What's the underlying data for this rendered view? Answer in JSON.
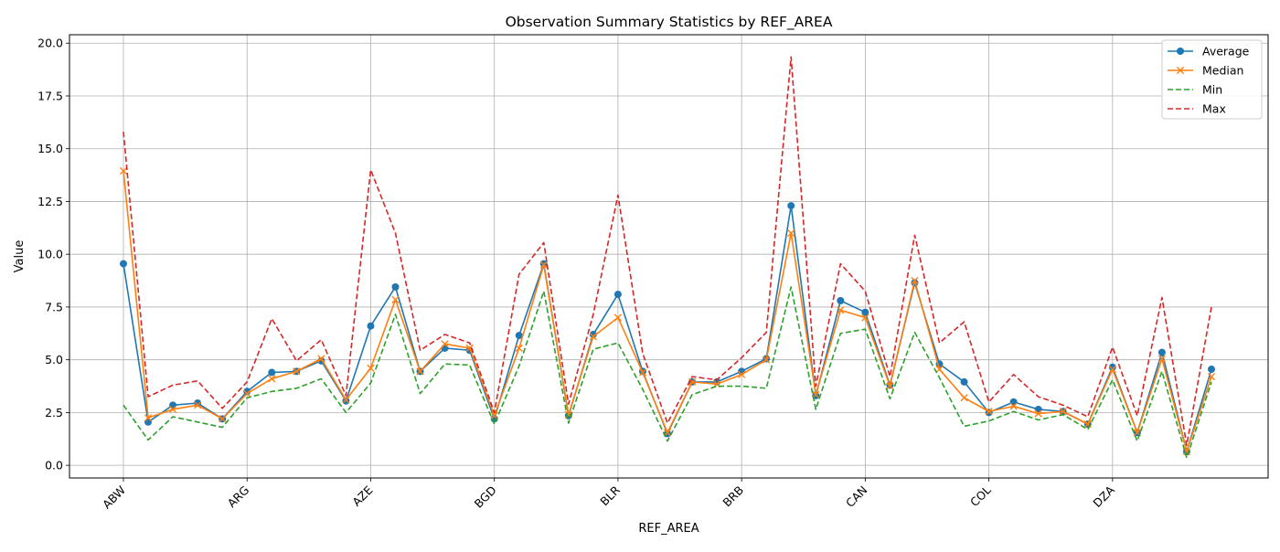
{
  "chart_data": {
    "type": "line",
    "title": "Observation Summary Statistics by REF_AREA",
    "xlabel": "REF_AREA",
    "ylabel": "Value",
    "ylim": [
      -0.6,
      20.4
    ],
    "yticks": [
      "0.0",
      "2.5",
      "5.0",
      "7.5",
      "10.0",
      "12.5",
      "15.0",
      "17.5",
      "20.0"
    ],
    "x_tick_labels": [
      {
        "index": 0,
        "label": "ABW"
      },
      {
        "index": 5,
        "label": "ARG"
      },
      {
        "index": 10,
        "label": "AZE"
      },
      {
        "index": 15,
        "label": "BGD"
      },
      {
        "index": 20,
        "label": "BLR"
      },
      {
        "index": 25,
        "label": "BRB"
      },
      {
        "index": 30,
        "label": "CAN"
      },
      {
        "index": 35,
        "label": "COL"
      },
      {
        "index": 40,
        "label": "DZA"
      }
    ],
    "grid": true,
    "legend_position": "top-right",
    "series": [
      {
        "name": "Average",
        "color": "#1f77b4",
        "marker": "circle",
        "dash": "solid",
        "values": [
          9.55,
          2.05,
          2.85,
          2.95,
          2.2,
          3.5,
          4.4,
          4.45,
          4.95,
          3.05,
          6.6,
          8.45,
          4.45,
          5.55,
          5.45,
          2.2,
          6.15,
          9.55,
          2.35,
          6.2,
          8.1,
          4.45,
          1.5,
          3.95,
          3.95,
          4.45,
          5.05,
          12.3,
          3.3,
          7.8,
          7.25,
          3.8,
          8.65,
          4.8,
          3.95,
          2.5,
          3.0,
          2.65,
          2.55,
          1.95,
          4.65,
          1.55,
          5.35,
          0.65,
          4.55
        ]
      },
      {
        "name": "Median",
        "color": "#ff7f0e",
        "marker": "x",
        "dash": "solid",
        "values": [
          13.95,
          2.25,
          2.65,
          2.85,
          2.2,
          3.4,
          4.1,
          4.45,
          5.05,
          3.1,
          4.6,
          7.85,
          4.45,
          5.75,
          5.55,
          2.35,
          5.55,
          9.5,
          2.4,
          6.1,
          7.0,
          4.4,
          1.55,
          3.95,
          3.85,
          4.3,
          5.0,
          11.0,
          3.35,
          7.35,
          7.0,
          3.75,
          8.75,
          4.55,
          3.2,
          2.55,
          2.8,
          2.45,
          2.55,
          1.95,
          4.55,
          1.55,
          5.05,
          0.65,
          4.2
        ]
      },
      {
        "name": "Min",
        "color": "#2ca02c",
        "marker": "none",
        "dash": "dashed",
        "values": [
          2.85,
          1.2,
          2.3,
          2.05,
          1.8,
          3.2,
          3.5,
          3.65,
          4.1,
          2.5,
          3.9,
          7.15,
          3.4,
          4.8,
          4.75,
          1.95,
          4.7,
          8.25,
          2.0,
          5.5,
          5.8,
          3.6,
          1.15,
          3.35,
          3.75,
          3.75,
          3.65,
          8.45,
          2.65,
          6.25,
          6.45,
          3.15,
          6.3,
          4.15,
          1.85,
          2.1,
          2.55,
          2.15,
          2.4,
          1.7,
          4.05,
          1.15,
          4.45,
          0.35,
          3.95
        ]
      },
      {
        "name": "Max",
        "color": "#d62728",
        "marker": "none",
        "dash": "dashed",
        "values": [
          15.8,
          3.25,
          3.8,
          4.0,
          2.7,
          3.95,
          6.95,
          4.95,
          5.95,
          3.3,
          14.0,
          11.0,
          5.45,
          6.2,
          5.8,
          2.5,
          9.05,
          10.55,
          2.9,
          7.15,
          12.8,
          5.3,
          2.0,
          4.2,
          4.05,
          5.1,
          6.3,
          19.35,
          3.75,
          9.55,
          8.25,
          4.2,
          10.9,
          5.8,
          6.8,
          3.0,
          4.3,
          3.25,
          2.85,
          2.3,
          5.6,
          2.35,
          7.95,
          0.95,
          7.5
        ]
      }
    ]
  }
}
